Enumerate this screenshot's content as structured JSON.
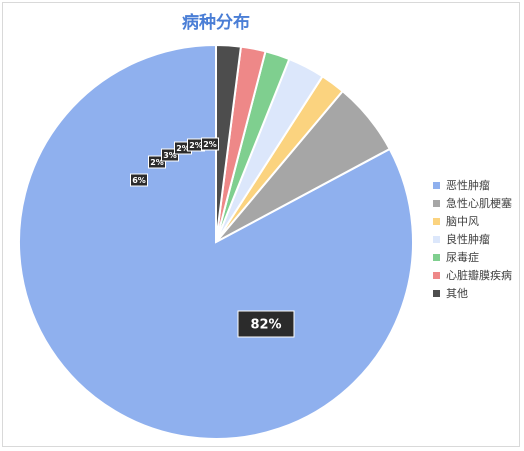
{
  "chart_data": {
    "type": "pie",
    "title": "病种分布",
    "slices": [
      {
        "name": "恶性肿瘤",
        "value": 82,
        "label": "82%",
        "color": "#8fb0ee"
      },
      {
        "name": "急性心肌梗塞",
        "value": 6,
        "label": "6%",
        "color": "#a6a6a6"
      },
      {
        "name": "脑中风",
        "value": 2,
        "label": "2%",
        "color": "#fbd37f"
      },
      {
        "name": "良性肿瘤",
        "value": 3,
        "label": "3%",
        "color": "#dce7fb"
      },
      {
        "name": "尿毒症",
        "value": 2,
        "label": "2%",
        "color": "#7fcf8f"
      },
      {
        "name": "心脏瓣膜疾病",
        "value": 2,
        "label": "2%",
        "color": "#ee8888"
      },
      {
        "name": "其他",
        "value": 2,
        "label": "2%",
        "color": "#4d4d4d"
      }
    ],
    "legend_position": "right"
  }
}
